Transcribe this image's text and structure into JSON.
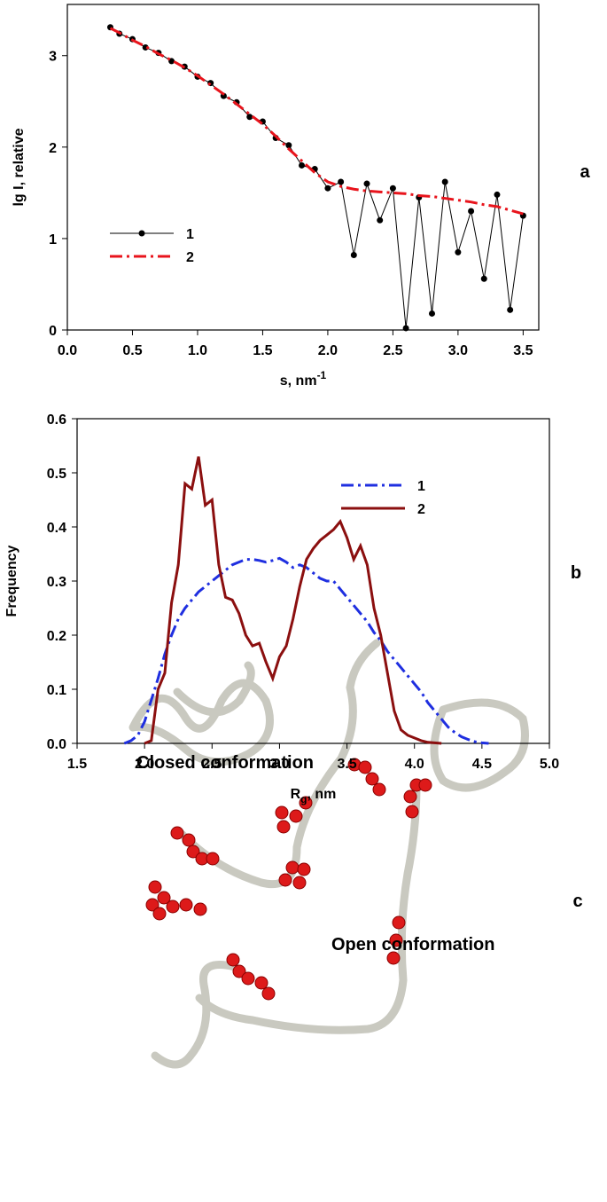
{
  "chart_data": [
    {
      "type": "line",
      "panel_label": "a",
      "ylabel": "lg I, relative",
      "xlabel": {
        "text": "s, nm",
        "sup": "-1"
      },
      "xlim": [
        0,
        3.62
      ],
      "ylim": [
        0,
        3.56
      ],
      "xticks": [
        {
          "value": 0,
          "label": "0.0"
        },
        0.5,
        {
          "value": 1,
          "label": "1.0"
        },
        1.5,
        {
          "value": 2,
          "label": "2.0"
        },
        2.5,
        {
          "value": 3,
          "label": "3.0"
        },
        3.5
      ],
      "yticks": [
        0,
        1,
        2,
        3
      ],
      "legend": "center left",
      "x": [
        0.33,
        0.4,
        0.5,
        0.6,
        0.7,
        0.8,
        0.9,
        1.0,
        1.1,
        1.2,
        1.3,
        1.4,
        1.5,
        1.6,
        1.7,
        1.8,
        1.9,
        2.0,
        2.1,
        2.2,
        2.3,
        2.4,
        2.5,
        2.6,
        2.7,
        2.8,
        2.9,
        3.0,
        3.1,
        3.2,
        3.3,
        3.4,
        3.5
      ],
      "series": [
        {
          "name": "1",
          "color": "#000000",
          "marker": true,
          "dash": "none",
          "values": [
            3.31,
            3.24,
            3.18,
            3.09,
            3.03,
            2.94,
            2.88,
            2.77,
            2.7,
            2.56,
            2.49,
            2.33,
            2.28,
            2.1,
            2.02,
            1.8,
            1.76,
            1.55,
            1.62,
            0.82,
            1.6,
            1.2,
            1.55,
            0.02,
            1.45,
            0.18,
            1.62,
            0.85,
            1.3,
            0.56,
            1.48,
            0.22,
            1.25
          ]
        },
        {
          "name": "2",
          "color": "#e8141c",
          "marker": false,
          "dash": "dashdot",
          "values": [
            3.3,
            3.25,
            3.17,
            3.1,
            3.02,
            2.95,
            2.87,
            2.78,
            2.68,
            2.58,
            2.47,
            2.36,
            2.25,
            2.12,
            1.98,
            1.85,
            1.72,
            1.62,
            1.57,
            1.54,
            1.52,
            1.51,
            1.5,
            1.49,
            1.47,
            1.46,
            1.44,
            1.42,
            1.4,
            1.37,
            1.35,
            1.31,
            1.27
          ]
        }
      ]
    },
    {
      "type": "line",
      "panel_label": "b",
      "ylabel": "Frequency",
      "xlabel": {
        "text": "R",
        "sub": "g",
        "rest": ", nm"
      },
      "xlim": [
        1.5,
        5.0
      ],
      "ylim": [
        0,
        0.6
      ],
      "xticks": [
        1.5,
        {
          "value": 2,
          "label": "2.0"
        },
        2.5,
        {
          "value": 3,
          "label": "3.0"
        },
        3.5,
        {
          "value": 4,
          "label": "4.0"
        },
        4.5,
        {
          "value": 5,
          "label": "5.0"
        }
      ],
      "yticks": [
        {
          "value": 0,
          "label": "0.0"
        },
        0.1,
        0.2,
        0.3,
        0.4,
        0.5,
        0.6
      ],
      "legend": "upper right",
      "x": [
        1.85,
        1.9,
        1.95,
        2.0,
        2.05,
        2.1,
        2.15,
        2.2,
        2.25,
        2.3,
        2.35,
        2.4,
        2.45,
        2.5,
        2.55,
        2.6,
        2.65,
        2.7,
        2.75,
        2.8,
        2.85,
        2.9,
        2.95,
        3.0,
        3.05,
        3.1,
        3.15,
        3.2,
        3.25,
        3.3,
        3.35,
        3.4,
        3.45,
        3.5,
        3.55,
        3.6,
        3.65,
        3.7,
        3.75,
        3.8,
        3.85,
        3.9,
        3.95,
        4.0,
        4.05,
        4.1,
        4.15,
        4.2,
        4.25,
        4.3,
        4.35,
        4.4,
        4.45,
        4.5,
        4.55
      ],
      "series": [
        {
          "name": "1",
          "color": "#1f2fe0",
          "marker": false,
          "dash": "dashdot",
          "values": [
            0,
            0.005,
            0.015,
            0.04,
            0.08,
            0.12,
            0.165,
            0.2,
            0.23,
            0.25,
            0.265,
            0.28,
            0.29,
            0.3,
            0.31,
            0.32,
            0.33,
            0.335,
            0.34,
            0.34,
            0.338,
            0.335,
            0.338,
            0.342,
            0.335,
            0.325,
            0.33,
            0.325,
            0.315,
            0.305,
            0.3,
            0.3,
            0.285,
            0.27,
            0.255,
            0.24,
            0.225,
            0.205,
            0.19,
            0.17,
            0.155,
            0.14,
            0.125,
            0.11,
            0.095,
            0.075,
            0.06,
            0.045,
            0.03,
            0.02,
            0.012,
            0.007,
            0.003,
            0.001,
            0
          ]
        },
        {
          "name": "2",
          "color": "#8b0f0f",
          "marker": false,
          "dash": "none",
          "values": [
            null,
            null,
            null,
            0,
            0.005,
            0.1,
            0.13,
            0.26,
            0.33,
            0.48,
            0.47,
            0.53,
            0.44,
            0.45,
            0.33,
            0.27,
            0.265,
            0.24,
            0.2,
            0.18,
            0.185,
            0.15,
            0.12,
            0.16,
            0.18,
            0.23,
            0.29,
            0.34,
            0.36,
            0.375,
            0.385,
            0.395,
            0.41,
            0.38,
            0.34,
            0.365,
            0.33,
            0.25,
            0.2,
            0.13,
            0.06,
            0.025,
            0.015,
            0.01,
            0.005,
            0.002,
            0.001,
            0,
            null,
            null,
            null,
            null,
            null,
            null,
            null
          ]
        }
      ]
    }
  ],
  "structure": {
    "panel_label": "c",
    "closed_caption": "Closed conformation",
    "open_caption": "Open conformation"
  }
}
